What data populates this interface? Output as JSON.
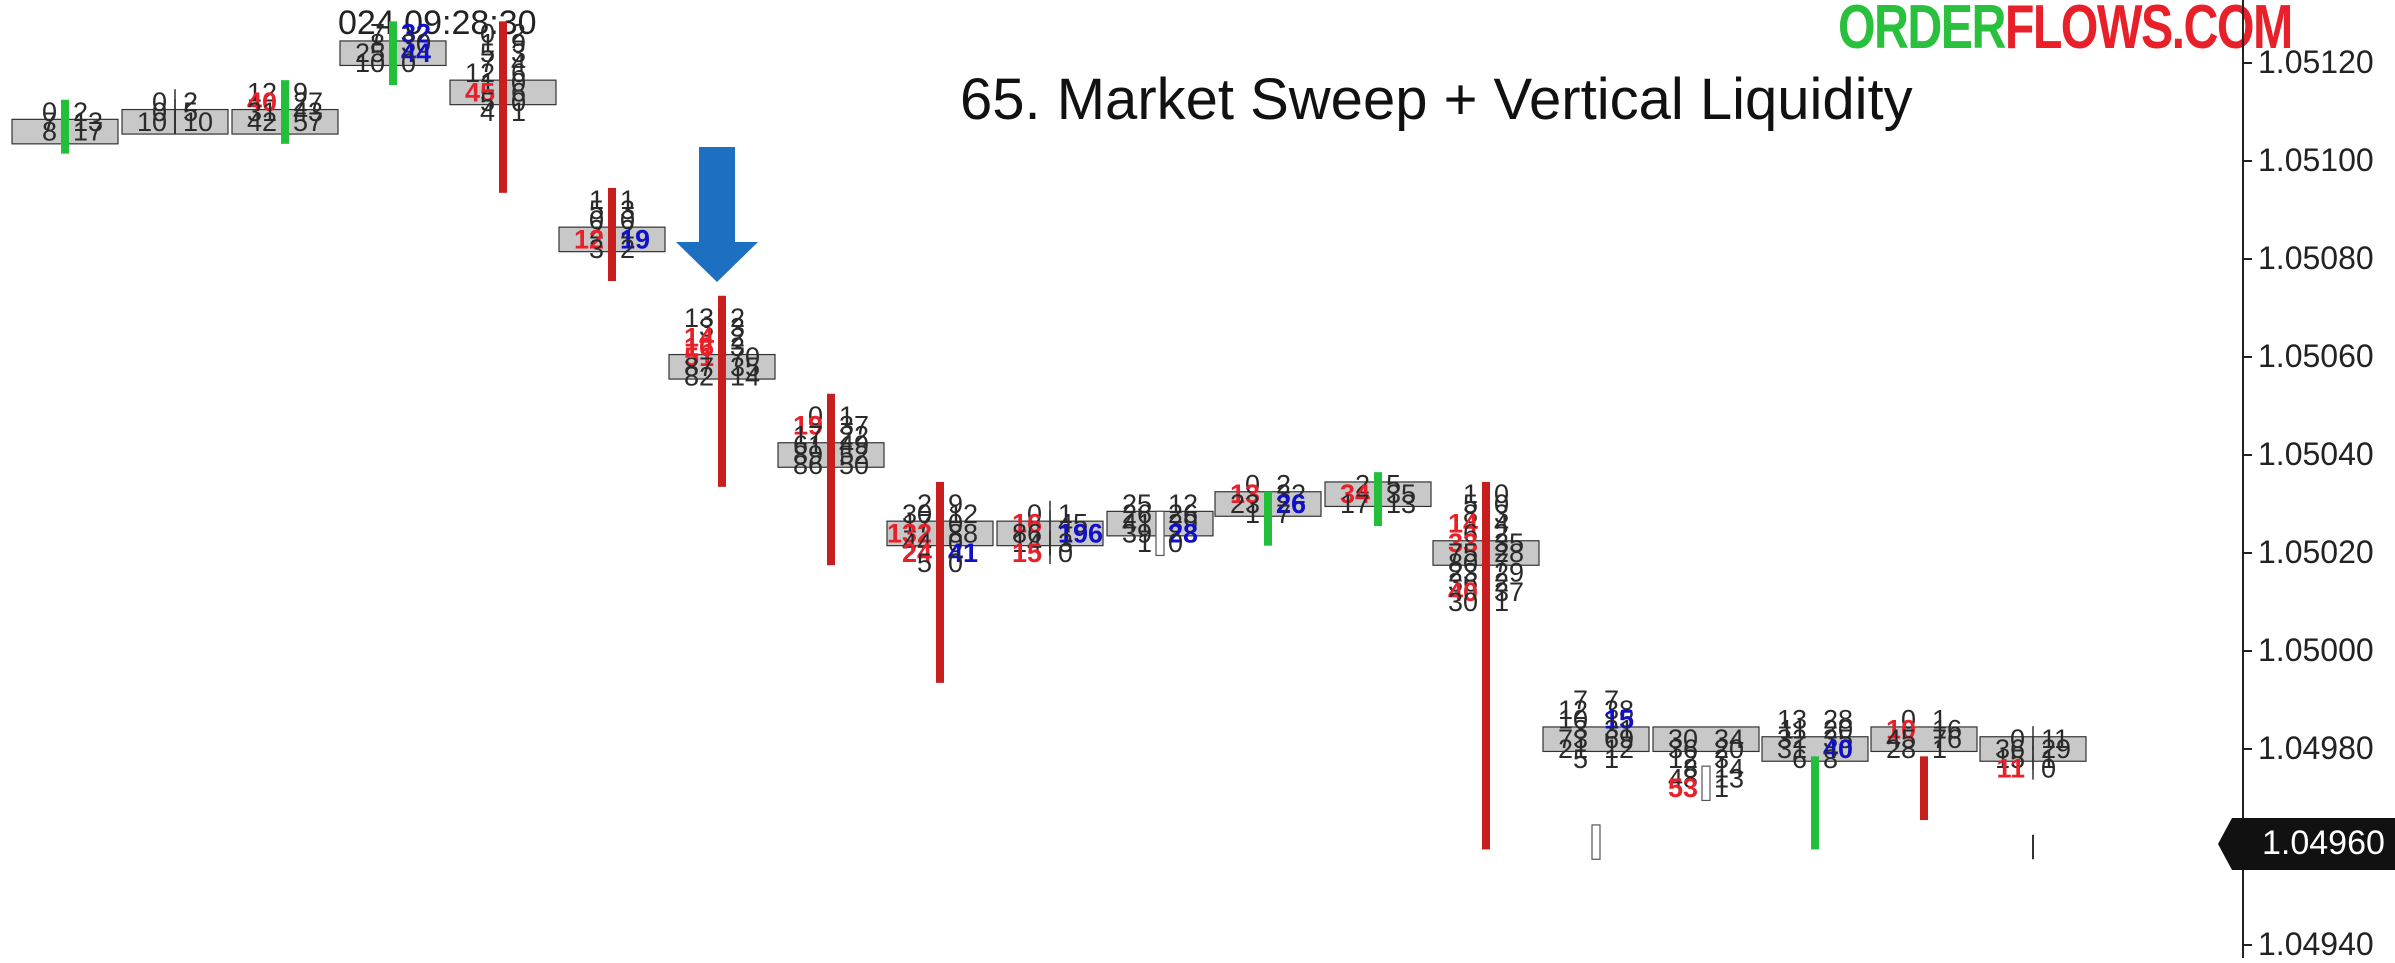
{
  "title": "65. Market Sweep + Vertical Liquidity",
  "logo": {
    "part1": "ORDER",
    "part2": "FLOWS.COM",
    "color1": "#28c03c",
    "color2": "#e8202a"
  },
  "timestamp": "024 09:28:30",
  "current_price": "1.04960",
  "colors": {
    "bearish_bar": "#c81e1e",
    "bullish_bar": "#22c03a",
    "buy_imbalance": "#1010c8",
    "sell_imbalance": "#e8202a",
    "poc_fill": "#c8c8c8",
    "arrow": "#1c6fc1"
  },
  "chart_data": {
    "type": "footprint",
    "title": "65. Market Sweep + Vertical Liquidity",
    "yaxis": {
      "side": "right",
      "range": [
        1.0493,
        1.0513
      ],
      "ticks": [
        "1.05120",
        "1.05100",
        "1.05080",
        "1.05060",
        "1.05040",
        "1.05020",
        "1.05000",
        "1.04980",
        "1.04960",
        "1.04940"
      ]
    },
    "tick_size": 2e-05,
    "bars": [
      {
        "dir": "up",
        "open": 1.05104,
        "close": 1.0511,
        "low": 1.05104,
        "high": 1.0511,
        "rows": [
          [
            1.0511,
            "0",
            0,
            "2",
            0
          ],
          [
            1.05108,
            "7",
            0,
            "13",
            0
          ],
          [
            1.05106,
            "8",
            0,
            "17",
            0,
            1
          ]
        ]
      },
      {
        "dir": "none",
        "open": 1.05108,
        "close": 1.05108,
        "low": 1.05108,
        "high": 1.05112,
        "rows": [
          [
            1.05112,
            "0",
            0,
            "2",
            0
          ],
          [
            1.0511,
            "0",
            0,
            "5",
            0
          ],
          [
            1.05108,
            "10",
            0,
            "10",
            0,
            1
          ]
        ]
      },
      {
        "dir": "up",
        "open": 1.05106,
        "close": 1.05114,
        "low": 1.05106,
        "high": 1.05114,
        "rows": [
          [
            1.05114,
            "12",
            0,
            "9",
            0
          ],
          [
            1.05112,
            "40",
            1,
            "27",
            0
          ],
          [
            1.0511,
            "31",
            0,
            "43",
            0
          ],
          [
            1.05108,
            "42",
            0,
            "57",
            0,
            1
          ]
        ]
      },
      {
        "dir": "up",
        "open": 1.05118,
        "close": 1.05126,
        "low": 1.05116,
        "high": 1.05126,
        "rows": [
          [
            1.05126,
            "7",
            0,
            "32",
            2
          ],
          [
            1.05124,
            "8",
            0,
            "30",
            0
          ],
          [
            1.05122,
            "25",
            0,
            "44",
            2,
            1
          ],
          [
            1.0512,
            "10",
            0,
            "0",
            0
          ]
        ]
      },
      {
        "dir": "down",
        "open": 1.05126,
        "close": 1.05096,
        "low": 1.05096,
        "high": 1.05126,
        "rows": [
          [
            1.05126,
            "0",
            0,
            "2",
            0
          ],
          [
            1.05124,
            "1",
            0,
            "9",
            0
          ],
          [
            1.05122,
            "5",
            0,
            "3",
            0
          ],
          [
            1.0512,
            "7",
            0,
            "4",
            0
          ],
          [
            1.05118,
            "12",
            0,
            "6",
            0
          ],
          [
            1.05116,
            "1",
            0,
            "0",
            0
          ],
          [
            1.05114,
            "45",
            1,
            "6",
            0,
            1
          ],
          [
            1.05112,
            "5",
            0,
            "0",
            0
          ],
          [
            1.0511,
            "4",
            0,
            "1",
            0
          ]
        ]
      },
      {
        "dir": "down",
        "open": 1.05092,
        "close": 1.05078,
        "low": 1.05076,
        "high": 1.05092,
        "rows": [
          [
            1.05092,
            "1",
            0,
            "1",
            0
          ],
          [
            1.0509,
            "5",
            0,
            "3",
            0
          ],
          [
            1.05088,
            "0",
            0,
            "0",
            0
          ],
          [
            1.05086,
            "2",
            0,
            "2",
            0
          ],
          [
            1.05084,
            "12",
            1,
            "19",
            2,
            1
          ],
          [
            1.05082,
            "3",
            0,
            "2",
            0
          ]
        ]
      },
      {
        "dir": "down",
        "open": 1.0507,
        "close": 1.05036,
        "low": 1.05036,
        "high": 1.0507,
        "rows": [
          [
            1.05068,
            "13",
            0,
            "2",
            0
          ],
          [
            1.05066,
            "3",
            0,
            "3",
            0
          ],
          [
            1.05064,
            "14",
            1,
            "2",
            0
          ],
          [
            1.05062,
            "16",
            1,
            "3",
            0
          ],
          [
            1.0506,
            "51",
            1,
            "70",
            0
          ],
          [
            1.05058,
            "87",
            0,
            "35",
            0,
            1
          ],
          [
            1.05056,
            "82",
            0,
            "14",
            0
          ]
        ]
      },
      {
        "dir": "down",
        "open": 1.0505,
        "close": 1.0502,
        "low": 1.0502,
        "high": 1.0505,
        "rows": [
          [
            1.05048,
            "0",
            0,
            "1",
            0
          ],
          [
            1.05046,
            "19",
            1,
            "37",
            0
          ],
          [
            1.05044,
            "17",
            0,
            "22",
            0
          ],
          [
            1.05042,
            "61",
            0,
            "49",
            0
          ],
          [
            1.0504,
            "89",
            0,
            "52",
            0,
            1
          ],
          [
            1.05038,
            "86",
            0,
            "50",
            0
          ]
        ]
      },
      {
        "dir": "down",
        "open": 1.05032,
        "close": 1.04996,
        "low": 1.04996,
        "high": 1.05032,
        "rows": [
          [
            1.0503,
            "2",
            0,
            "9",
            0
          ],
          [
            1.05028,
            "30",
            0,
            "12",
            0
          ],
          [
            1.05026,
            "17",
            0,
            "0",
            0
          ],
          [
            1.05024,
            "132",
            1,
            "88",
            0,
            1
          ],
          [
            1.05022,
            "44",
            0,
            "0",
            0
          ],
          [
            1.0502,
            "24",
            1,
            "41",
            2
          ],
          [
            1.05018,
            "5",
            0,
            "0",
            0
          ]
        ]
      },
      {
        "dir": "none",
        "open": 1.05022,
        "close": 1.05022,
        "low": 1.05022,
        "high": 1.05022,
        "rows": [
          [
            1.05028,
            "0",
            0,
            "1",
            0
          ],
          [
            1.05026,
            "16",
            1,
            "45",
            0
          ],
          [
            1.05024,
            "86",
            0,
            "196",
            2,
            1
          ],
          [
            1.05022,
            "14",
            0,
            "3",
            0
          ],
          [
            1.0502,
            "15",
            1,
            "0",
            0
          ]
        ]
      },
      {
        "dir": "hollow",
        "open": 1.05022,
        "close": 1.05026,
        "low": 1.05022,
        "high": 1.05026,
        "rows": [
          [
            1.0503,
            "25",
            0,
            "12",
            0
          ],
          [
            1.05028,
            "26",
            0,
            "26",
            0
          ],
          [
            1.05026,
            "41",
            0,
            "39",
            0,
            1
          ],
          [
            1.05024,
            "39",
            0,
            "28",
            2
          ],
          [
            1.05022,
            "1",
            0,
            "0",
            0
          ]
        ]
      },
      {
        "dir": "up",
        "open": 1.05024,
        "close": 1.0503,
        "low": 1.05024,
        "high": 1.0503,
        "rows": [
          [
            1.05034,
            "0",
            0,
            "2",
            0
          ],
          [
            1.05032,
            "13",
            1,
            "32",
            0
          ],
          [
            1.0503,
            "23",
            0,
            "26",
            2,
            1
          ],
          [
            1.05028,
            "1",
            0,
            "7",
            0
          ]
        ]
      },
      {
        "dir": "up",
        "open": 1.05028,
        "close": 1.05034,
        "low": 1.05028,
        "high": 1.05034,
        "rows": [
          [
            1.05034,
            "2",
            0,
            "5",
            0
          ],
          [
            1.05032,
            "34",
            1,
            "35",
            0,
            1
          ],
          [
            1.0503,
            "17",
            0,
            "13",
            0
          ]
        ]
      },
      {
        "dir": "down",
        "open": 1.05032,
        "close": 1.04962,
        "low": 1.04962,
        "high": 1.05032,
        "rows": [
          [
            1.05032,
            "1",
            0,
            "0",
            0
          ],
          [
            1.0503,
            "5",
            0,
            "0",
            0
          ],
          [
            1.05028,
            "8",
            0,
            "3",
            0
          ],
          [
            1.05026,
            "14",
            1,
            "4",
            0
          ],
          [
            1.05024,
            "6",
            0,
            "2",
            0
          ],
          [
            1.05022,
            "33",
            1,
            "35",
            0
          ],
          [
            1.0502,
            "75",
            0,
            "28",
            0,
            1
          ],
          [
            1.05018,
            "80",
            0,
            "7",
            0
          ],
          [
            1.05016,
            "23",
            0,
            "29",
            0
          ],
          [
            1.05014,
            "36",
            0,
            "2",
            0
          ],
          [
            1.05012,
            "40",
            1,
            "37",
            0
          ],
          [
            1.0501,
            "30",
            0,
            "1",
            0
          ]
        ]
      },
      {
        "dir": "hollow",
        "open": 1.04962,
        "close": 1.0496,
        "low": 1.0496,
        "high": 1.04962,
        "rows": [
          [
            1.0499,
            "7",
            0,
            "7",
            0
          ],
          [
            1.04988,
            "12",
            0,
            "38",
            0
          ],
          [
            1.04986,
            "10",
            0,
            "15",
            2
          ],
          [
            1.04984,
            "3",
            0,
            "31",
            0
          ],
          [
            1.04982,
            "73",
            0,
            "69",
            0,
            1
          ],
          [
            1.0498,
            "21",
            0,
            "12",
            0
          ],
          [
            1.04978,
            "5",
            0,
            "1",
            0
          ]
        ]
      },
      {
        "dir": "hollow",
        "open": 1.04972,
        "close": 1.04974,
        "low": 1.04972,
        "high": 1.04974,
        "rows": [
          [
            1.04982,
            "30",
            0,
            "34",
            0,
            1
          ],
          [
            1.0498,
            "36",
            0,
            "20",
            0
          ],
          [
            1.04978,
            "12",
            0,
            "3",
            0
          ],
          [
            1.04976,
            "8",
            0,
            "14",
            0
          ],
          [
            1.04974,
            "48",
            0,
            "13",
            0
          ],
          [
            1.04972,
            "53",
            1,
            "1",
            0
          ]
        ]
      },
      {
        "dir": "up",
        "open": 1.04962,
        "close": 1.04976,
        "low": 1.04962,
        "high": 1.04976,
        "rows": [
          [
            1.04986,
            "13",
            0,
            "28",
            0
          ],
          [
            1.04984,
            "11",
            0,
            "20",
            0
          ],
          [
            1.04982,
            "32",
            0,
            "35",
            0
          ],
          [
            1.0498,
            "31",
            0,
            "40",
            2,
            1
          ],
          [
            1.04978,
            "6",
            0,
            "8",
            0
          ]
        ]
      },
      {
        "dir": "down",
        "open": 1.04976,
        "close": 1.04968,
        "low": 1.04968,
        "high": 1.04976,
        "rows": [
          [
            1.04986,
            "0",
            0,
            "1",
            0
          ],
          [
            1.04984,
            "10",
            1,
            "16",
            0
          ],
          [
            1.04982,
            "45",
            0,
            "76",
            0,
            1
          ],
          [
            1.0498,
            "28",
            0,
            "1",
            0
          ]
        ]
      },
      {
        "dir": "none",
        "open": 1.0496,
        "close": 1.0496,
        "low": 1.0496,
        "high": 1.0496,
        "rows": [
          [
            1.04982,
            "0",
            0,
            "11",
            0
          ],
          [
            1.0498,
            "36",
            0,
            "29",
            0,
            1
          ],
          [
            1.04978,
            "15",
            0,
            "1",
            0
          ],
          [
            1.04976,
            "11",
            1,
            "0",
            0
          ]
        ]
      }
    ]
  }
}
